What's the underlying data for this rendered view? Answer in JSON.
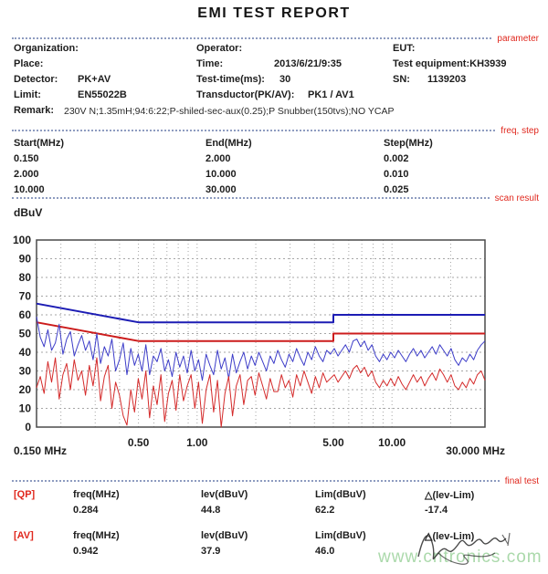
{
  "header": {
    "title": "EMI TEST REPORT"
  },
  "parameter": {
    "section_label": "parameter",
    "organization_label": "Organization:",
    "operator_label": "Operator:",
    "eut_label": "EUT:",
    "place_label": "Place:",
    "time_label": "Time:",
    "time_value": "2013/6/21/9:35",
    "test_equipment_label": "Test equipment:",
    "test_equipment_value": "KH3939",
    "detector_label": "Detector:",
    "detector_value": "PK+AV",
    "test_time_label": "Test-time(ms):",
    "test_time_value": "30",
    "sn_label": "SN:",
    "sn_value": "1139203",
    "limit_label": "Limit:",
    "limit_value": "EN55022B",
    "transductor_label": "Transductor(PK/AV):",
    "transductor_value": "PK1  /  AV1",
    "remark_label": "Remark:",
    "remark_value": "230V N;1.35mH;94:6:22;P-shiled-sec-aux(0.25);P Snubber(150tvs);NO YCAP"
  },
  "freq_step": {
    "section_label": "freq, step",
    "headers": [
      "Start(MHz)",
      "End(MHz)",
      "Step(MHz)"
    ],
    "rows": [
      [
        "0.150",
        "2.000",
        "0.002"
      ],
      [
        "2.000",
        "10.000",
        "0.010"
      ],
      [
        "10.000",
        "30.000",
        "0.025"
      ]
    ]
  },
  "scan_result": {
    "section_label": "scan result",
    "y_axis_title": "dBuV",
    "x_label_left": "0.150 MHz",
    "x_label_right": "30.000 MHz"
  },
  "chart_data": {
    "type": "line",
    "x_scale": "log",
    "x_range": [
      0.15,
      30
    ],
    "y_range": [
      0,
      100
    ],
    "y_tick_step": 10,
    "ylabel": "dBuV",
    "grid": true,
    "x_tick_labels": [
      {
        "value": 0.5,
        "label": "0.50"
      },
      {
        "value": 1,
        "label": "1.00"
      },
      {
        "value": 5,
        "label": "5.00"
      },
      {
        "value": 10,
        "label": "10.00"
      }
    ],
    "grid_x_lines": [
      0.2,
      0.3,
      0.4,
      0.5,
      0.6,
      0.7,
      0.8,
      0.9,
      1,
      2,
      3,
      4,
      5,
      6,
      7,
      8,
      9,
      10,
      20
    ],
    "series": [
      {
        "name": "QP-limit-EN55022B",
        "kind": "limit",
        "color": "#1c1cb4",
        "width": 2,
        "points": [
          [
            0.15,
            66
          ],
          [
            0.5,
            56
          ],
          [
            5,
            56
          ],
          [
            5,
            60
          ],
          [
            30,
            60
          ]
        ]
      },
      {
        "name": "AV-limit-EN55022B",
        "kind": "limit",
        "color": "#cc1c1c",
        "width": 2,
        "points": [
          [
            0.15,
            56
          ],
          [
            0.5,
            46
          ],
          [
            5,
            46
          ],
          [
            5,
            50
          ],
          [
            30,
            50
          ]
        ]
      },
      {
        "name": "PK-scan-trace",
        "kind": "trace",
        "color": "#3c3cc8",
        "width": 1,
        "x_spacing": "log-even",
        "values": [
          59,
          48,
          43,
          52,
          41,
          45,
          55,
          39,
          47,
          51,
          38,
          44,
          49,
          41,
          46,
          36,
          50,
          34,
          43,
          38,
          47,
          30,
          36,
          45,
          28,
          42,
          33,
          39,
          30,
          44,
          28,
          38,
          35,
          42,
          30,
          36,
          27,
          40,
          32,
          38,
          29,
          41,
          30,
          36,
          25,
          39,
          33,
          28,
          41,
          31,
          37,
          26,
          39,
          29,
          35,
          40,
          31,
          38,
          33,
          40,
          35,
          30,
          38,
          34,
          41,
          36,
          32,
          39,
          35,
          42,
          37,
          33,
          40,
          36,
          43,
          38,
          35,
          41,
          39,
          42,
          38,
          41,
          44,
          40,
          46,
          47,
          43,
          46,
          41,
          44,
          38,
          35,
          39,
          36,
          40,
          37,
          41,
          38,
          35,
          39,
          42,
          38,
          41,
          37,
          40,
          43,
          39,
          44,
          41,
          38,
          42,
          36,
          33,
          37,
          35,
          39,
          36,
          41,
          44,
          46
        ]
      },
      {
        "name": "AV-scan-trace",
        "kind": "trace",
        "color": "#d42a2a",
        "width": 1,
        "x_spacing": "log-even",
        "values": [
          21,
          27,
          18,
          35,
          24,
          37,
          15,
          28,
          34,
          20,
          36,
          25,
          30,
          17,
          33,
          22,
          37,
          14,
          27,
          33,
          10,
          24,
          17,
          6,
          1,
          20,
          8,
          26,
          15,
          30,
          5,
          22,
          12,
          28,
          3,
          18,
          25,
          9,
          28,
          14,
          22,
          28,
          10,
          24,
          2,
          20,
          28,
          8,
          25,
          0,
          18,
          27,
          6,
          22,
          28,
          12,
          25,
          27,
          17,
          29,
          22,
          15,
          26,
          19,
          19,
          28,
          21,
          25,
          16,
          28,
          22,
          30,
          24,
          18,
          27,
          21,
          29,
          24,
          26,
          28,
          24,
          27,
          30,
          26,
          31,
          33,
          29,
          32,
          27,
          30,
          24,
          21,
          25,
          22,
          26,
          22,
          27,
          23,
          20,
          24,
          28,
          24,
          27,
          22,
          26,
          29,
          25,
          31,
          28,
          24,
          28,
          22,
          20,
          24,
          21,
          26,
          23,
          28,
          30,
          25
        ]
      }
    ]
  },
  "final_test": {
    "section_label": "final test",
    "qp": {
      "tag": "[QP]",
      "headers": [
        "freq(MHz)",
        "lev(dBuV)",
        "Lim(dBuV)",
        "△(lev-Lim)"
      ],
      "values": [
        "0.284",
        "44.8",
        "62.2",
        "-17.4"
      ]
    },
    "av": {
      "tag": "[AV]",
      "headers": [
        "freq(MHz)",
        "lev(dBuV)",
        "Lim(dBuV)",
        "△(lev-Lim)"
      ],
      "values": [
        "0.942",
        "37.9",
        "46.0",
        ""
      ]
    }
  },
  "watermark": "www.cntronics.com",
  "colors": {
    "accent_red": "#e0281e",
    "qp_limit": "#1c1cb4",
    "av_limit": "#cc1c1c",
    "pk_trace": "#3c3cc8",
    "av_trace": "#d42a2a",
    "watermark_green": "#abd9ab",
    "grid_gray": "#a6a6a6",
    "plot_border": "#4a4a4a"
  }
}
